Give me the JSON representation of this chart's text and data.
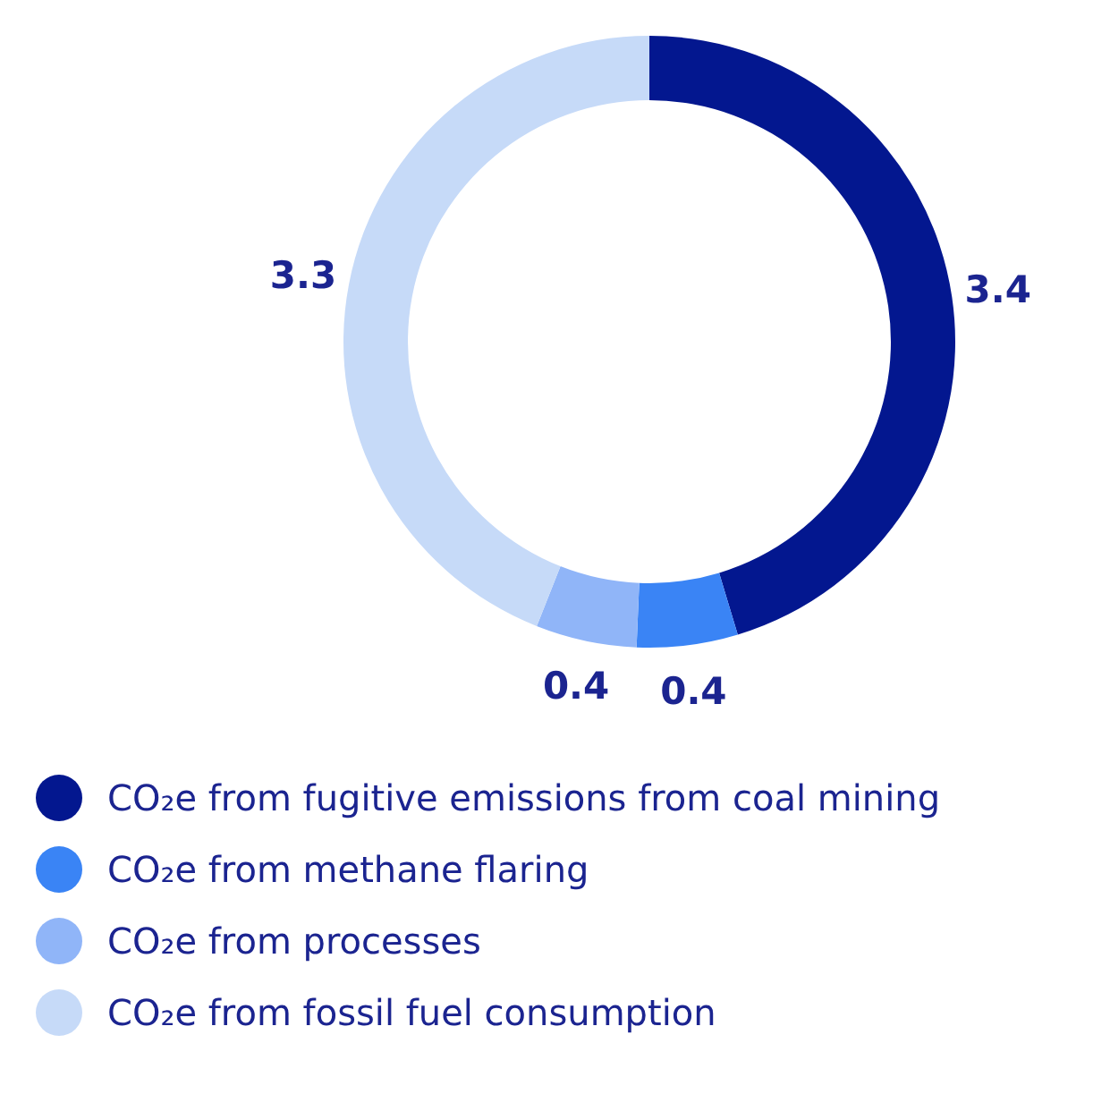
{
  "chart_data": {
    "type": "donut",
    "categories": [
      "CO₂e from fugitive emissions from coal mining",
      "CO₂e from methane flaring",
      "CO₂e from processes",
      "CO₂e from fossil fuel consumption"
    ],
    "values": [
      3.4,
      0.4,
      0.4,
      3.3
    ],
    "colors": [
      "#03178f",
      "#3a84f5",
      "#90b5f8",
      "#c6daf8"
    ],
    "data_labels": true,
    "legend": "bottom"
  }
}
